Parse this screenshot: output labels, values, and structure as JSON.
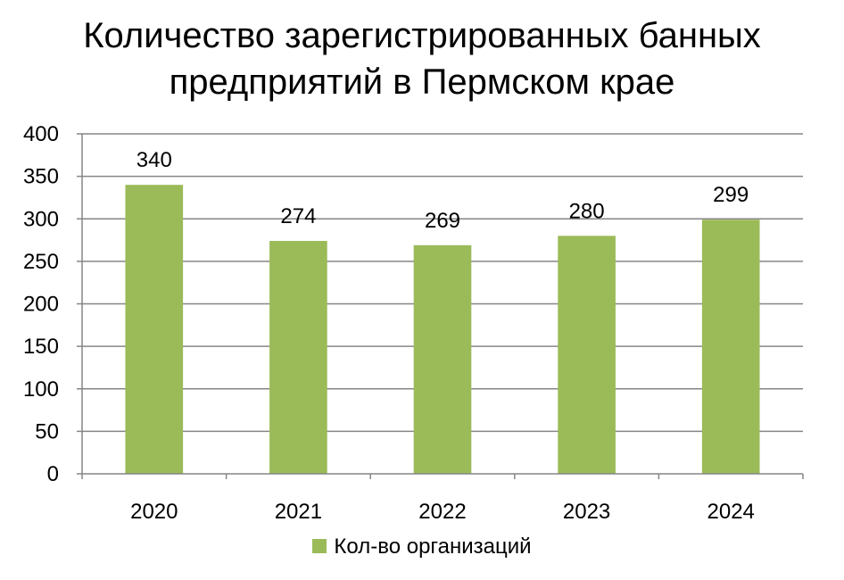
{
  "chart_data": {
    "type": "bar",
    "title_lines": [
      "Количество зарегистрированных банных",
      "предприятий в Пермском крае"
    ],
    "categories": [
      "2020",
      "2021",
      "2022",
      "2023",
      "2024"
    ],
    "series": [
      {
        "name": "Кол-во организаций",
        "values": [
          340,
          274,
          269,
          280,
          299
        ],
        "color": "#9bbb59"
      }
    ],
    "data_labels": [
      "340",
      "274",
      "269",
      "280",
      "299"
    ],
    "ylim": [
      0,
      400
    ],
    "yticks": [
      0,
      50,
      100,
      150,
      200,
      250,
      300,
      350,
      400
    ],
    "ytick_labels": [
      "0",
      "50",
      "100",
      "150",
      "200",
      "250",
      "300",
      "350",
      "400"
    ],
    "xlabel": "",
    "ylabel": "",
    "grid": true,
    "gridline_color": "#868686",
    "legend_position": "bottom"
  }
}
